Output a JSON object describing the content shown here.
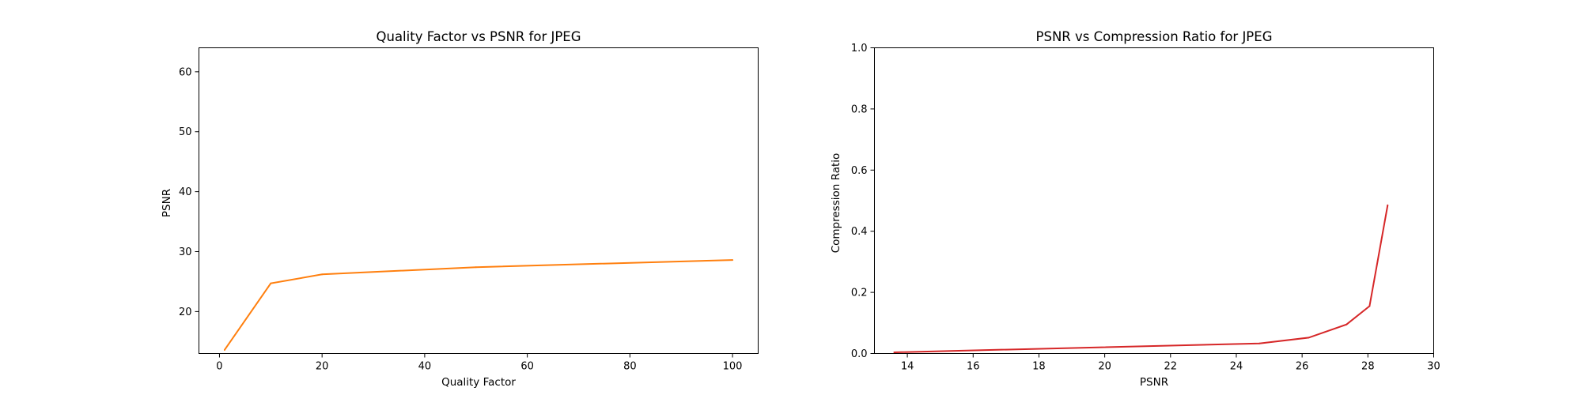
{
  "chart_data": [
    {
      "type": "line",
      "title": "Quality Factor vs PSNR for JPEG",
      "xlabel": "Quality Factor",
      "ylabel": "PSNR",
      "xlim": [
        -4,
        105
      ],
      "ylim": [
        13,
        64
      ],
      "xticks": [
        0,
        20,
        40,
        60,
        80,
        100
      ],
      "yticks": [
        20,
        30,
        40,
        50,
        60
      ],
      "grid": false,
      "color": "#ff7f0e",
      "x": [
        1,
        10,
        20,
        50,
        100
      ],
      "y": [
        13.6,
        24.7,
        26.2,
        27.4,
        28.6
      ]
    },
    {
      "type": "line",
      "title": "PSNR vs Compression Ratio for JPEG",
      "xlabel": "PSNR",
      "ylabel": "Compression Ratio",
      "xlim": [
        13,
        30
      ],
      "ylim": [
        0.0,
        1.0
      ],
      "xticks": [
        14,
        16,
        18,
        20,
        22,
        24,
        26,
        28,
        30
      ],
      "yticks": [
        0.0,
        0.2,
        0.4,
        0.6,
        0.8,
        1.0
      ],
      "ytick_labels": [
        "0.0",
        "0.2",
        "0.4",
        "0.6",
        "0.8",
        "1.0"
      ],
      "grid": false,
      "color": "#d62728",
      "x": [
        13.6,
        24.7,
        26.2,
        27.35,
        28.05,
        28.6
      ],
      "y": [
        0.004,
        0.033,
        0.052,
        0.095,
        0.155,
        0.485
      ]
    }
  ]
}
